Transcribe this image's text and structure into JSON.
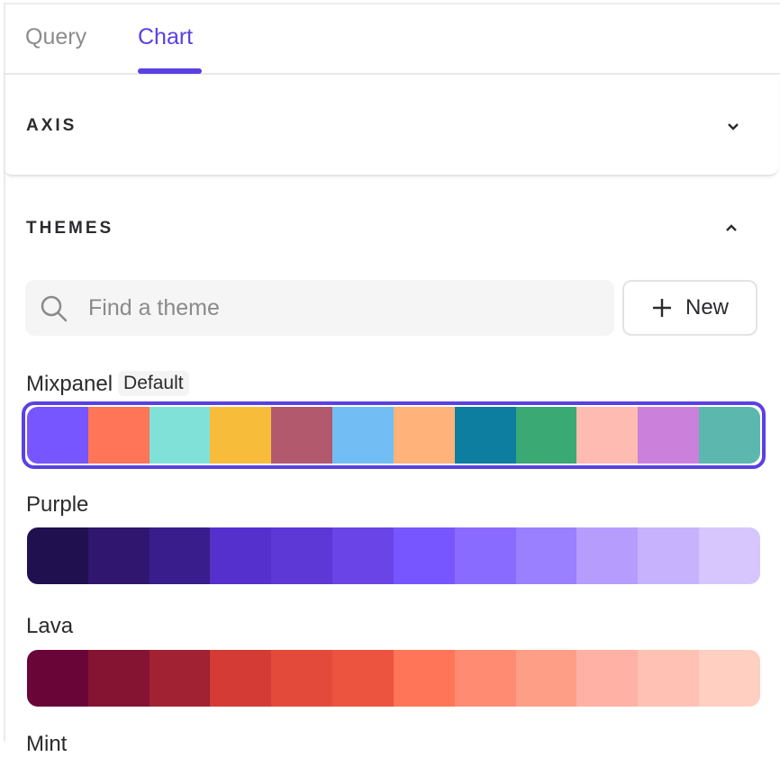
{
  "tabs": [
    {
      "label": "Query",
      "active": false
    },
    {
      "label": "Chart",
      "active": true
    }
  ],
  "accent": "#5941e3",
  "sections": {
    "axis": {
      "title": "AXIS",
      "expanded": false
    },
    "themes": {
      "title": "THEMES",
      "expanded": true
    }
  },
  "search": {
    "placeholder": "Find a theme",
    "value": ""
  },
  "new_button": {
    "label": "New"
  },
  "themes": [
    {
      "name": "Mixpanel",
      "badge": "Default",
      "selected": true,
      "colors": [
        "#7856ff",
        "#ff7557",
        "#80e1d9",
        "#f8bc3b",
        "#b2596e",
        "#72bef4",
        "#ffb27a",
        "#0d7ea0",
        "#3ba974",
        "#febbb2",
        "#cb80dc",
        "#5cb7af"
      ]
    },
    {
      "name": "Purple",
      "colors": [
        "#211050",
        "#30166e",
        "#3a1d8c",
        "#5530cc",
        "#5e38d6",
        "#6b44e8",
        "#7856ff",
        "#8a6bff",
        "#9a80ff",
        "#b59cfd",
        "#c7b3fd",
        "#d6c6fd"
      ]
    },
    {
      "name": "Lava",
      "colors": [
        "#6a0538",
        "#851433",
        "#a02233",
        "#d33b34",
        "#e34a3a",
        "#ec5440",
        "#ff7557",
        "#ff8b72",
        "#ff9e86",
        "#ffb1a5",
        "#ffc1b3",
        "#ffcfc2"
      ]
    },
    {
      "name": "Mint"
    }
  ]
}
